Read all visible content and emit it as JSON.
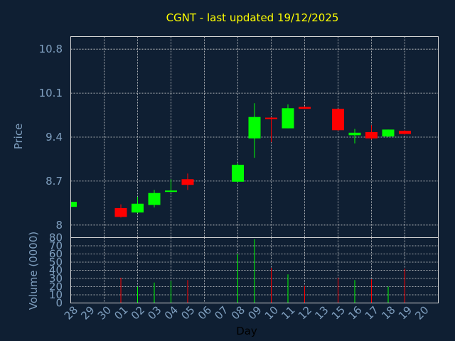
{
  "chart_data": {
    "type": "candlestick",
    "title": "CGNT - last updated 19/12/2025",
    "xlabel": "Day",
    "price_panel": {
      "ylabel": "Price",
      "ylim": [
        7.8,
        11.0
      ],
      "yticks": [
        "8",
        "8.7",
        "9.4",
        "10.1",
        "10.8"
      ],
      "grid": true
    },
    "volume_panel": {
      "ylabel": "Volume (0000)",
      "ylim": [
        0,
        80
      ],
      "yticks": [
        "0",
        "10",
        "20",
        "30",
        "40",
        "50",
        "60",
        "70",
        "80"
      ],
      "grid": true
    },
    "x_labels": [
      "28",
      "29",
      "30",
      "01",
      "02",
      "03",
      "04",
      "05",
      "06",
      "07",
      "08",
      "09",
      "10",
      "11",
      "12",
      "13",
      "15",
      "16",
      "17",
      "18",
      "19",
      "20"
    ],
    "colors": {
      "up": "#00ff00",
      "down": "#ff0000"
    },
    "candles": [
      {
        "day": "28",
        "open": 8.29,
        "high": 8.39,
        "low": 8.29,
        "close": 8.37,
        "volume": 0
      },
      {
        "day": "01",
        "open": 8.27,
        "high": 8.33,
        "low": 8.12,
        "close": 8.13,
        "volume": 31
      },
      {
        "day": "02",
        "open": 8.2,
        "high": 8.45,
        "low": 8.19,
        "close": 8.34,
        "volume": 20
      },
      {
        "day": "03",
        "open": 8.32,
        "high": 8.56,
        "low": 8.28,
        "close": 8.51,
        "volume": 25
      },
      {
        "day": "04",
        "open": 8.54,
        "high": 8.73,
        "low": 8.52,
        "close": 8.55,
        "volume": 27
      },
      {
        "day": "05",
        "open": 8.73,
        "high": 8.82,
        "low": 8.56,
        "close": 8.64,
        "volume": 28
      },
      {
        "day": "08",
        "open": 8.69,
        "high": 8.98,
        "low": 8.68,
        "close": 8.96,
        "volume": 60
      },
      {
        "day": "09",
        "open": 9.38,
        "high": 9.94,
        "low": 9.07,
        "close": 9.72,
        "volume": 78
      },
      {
        "day": "10",
        "open": 9.71,
        "high": 9.72,
        "low": 9.32,
        "close": 9.69,
        "volume": 43
      },
      {
        "day": "11",
        "open": 9.54,
        "high": 9.92,
        "low": 9.54,
        "close": 9.86,
        "volume": 35
      },
      {
        "day": "12",
        "open": 9.88,
        "high": 9.89,
        "low": 9.85,
        "close": 9.85,
        "volume": 21
      },
      {
        "day": "15",
        "open": 9.85,
        "high": 9.85,
        "low": 9.5,
        "close": 9.51,
        "volume": 31
      },
      {
        "day": "16",
        "open": 9.43,
        "high": 9.53,
        "low": 9.3,
        "close": 9.47,
        "volume": 28
      },
      {
        "day": "17",
        "open": 9.48,
        "high": 9.59,
        "low": 9.36,
        "close": 9.38,
        "volume": 29
      },
      {
        "day": "18",
        "open": 9.41,
        "high": 9.52,
        "low": 9.4,
        "close": 9.52,
        "volume": 20
      },
      {
        "day": "19",
        "open": 9.5,
        "high": 9.51,
        "low": 9.44,
        "close": 9.45,
        "volume": 42
      }
    ]
  }
}
